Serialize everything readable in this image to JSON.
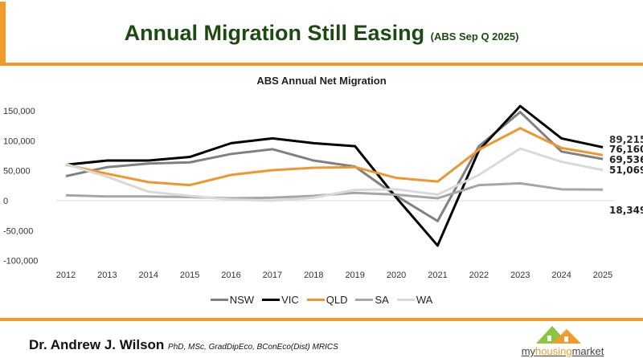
{
  "header": {
    "title": "Annual Migration Still Easing",
    "subtitle": "(ABS Sep Q 2025)"
  },
  "footer": {
    "author": "Dr. Andrew J. Wilson",
    "credentials": "PhD, MSc, GradDipEco, BConEco(Dist) MRICS",
    "logo_text_a": "my",
    "logo_text_b": "housing",
    "logo_text_c": "market"
  },
  "colors": {
    "accent": "#f39a2c",
    "title": "#1d4a12"
  },
  "chart_data": {
    "type": "line",
    "title": "ABS Annual Net Migration",
    "x": [
      "2012",
      "2013",
      "2014",
      "2015",
      "2016",
      "2017",
      "2018",
      "2019",
      "2020",
      "2021",
      "2022",
      "2023",
      "2024",
      "2025"
    ],
    "ylim": [
      -100000,
      150000
    ],
    "yticks": [
      "150,000",
      "100,000",
      "50,000",
      "0",
      "-50,000",
      "-100,000"
    ],
    "grid": false,
    "legend": "bottom",
    "series": [
      {
        "name": "NSW",
        "color": "#808080",
        "values": [
          41000,
          56000,
          62000,
          64000,
          78000,
          86000,
          67000,
          57000,
          8000,
          -34000,
          91000,
          148000,
          82000,
          69536
        ],
        "end_label": "69,536"
      },
      {
        "name": "VIC",
        "color": "#000000",
        "values": [
          60000,
          67000,
          67000,
          73000,
          96000,
          104000,
          96000,
          91000,
          5000,
          -75000,
          84000,
          158000,
          104000,
          89215
        ],
        "end_label": "89,215"
      },
      {
        "name": "QLD",
        "color": "#f0962e",
        "values": [
          60000,
          45000,
          31000,
          26000,
          43000,
          51000,
          55000,
          56000,
          38000,
          32000,
          85000,
          121000,
          88000,
          76160
        ],
        "end_label": "76,160"
      },
      {
        "name": "SA",
        "color": "#a6a6a6",
        "values": [
          9000,
          7000,
          7000,
          6000,
          4000,
          5000,
          8000,
          13000,
          10000,
          4000,
          26000,
          29000,
          19000,
          18349
        ],
        "end_label": "18,349"
      },
      {
        "name": "WA",
        "color": "#d9d9d9",
        "values": [
          61000,
          40000,
          15000,
          8000,
          2000,
          0,
          5000,
          18000,
          19000,
          10000,
          43000,
          87000,
          65000,
          51069
        ],
        "end_label": "51,069"
      }
    ]
  }
}
